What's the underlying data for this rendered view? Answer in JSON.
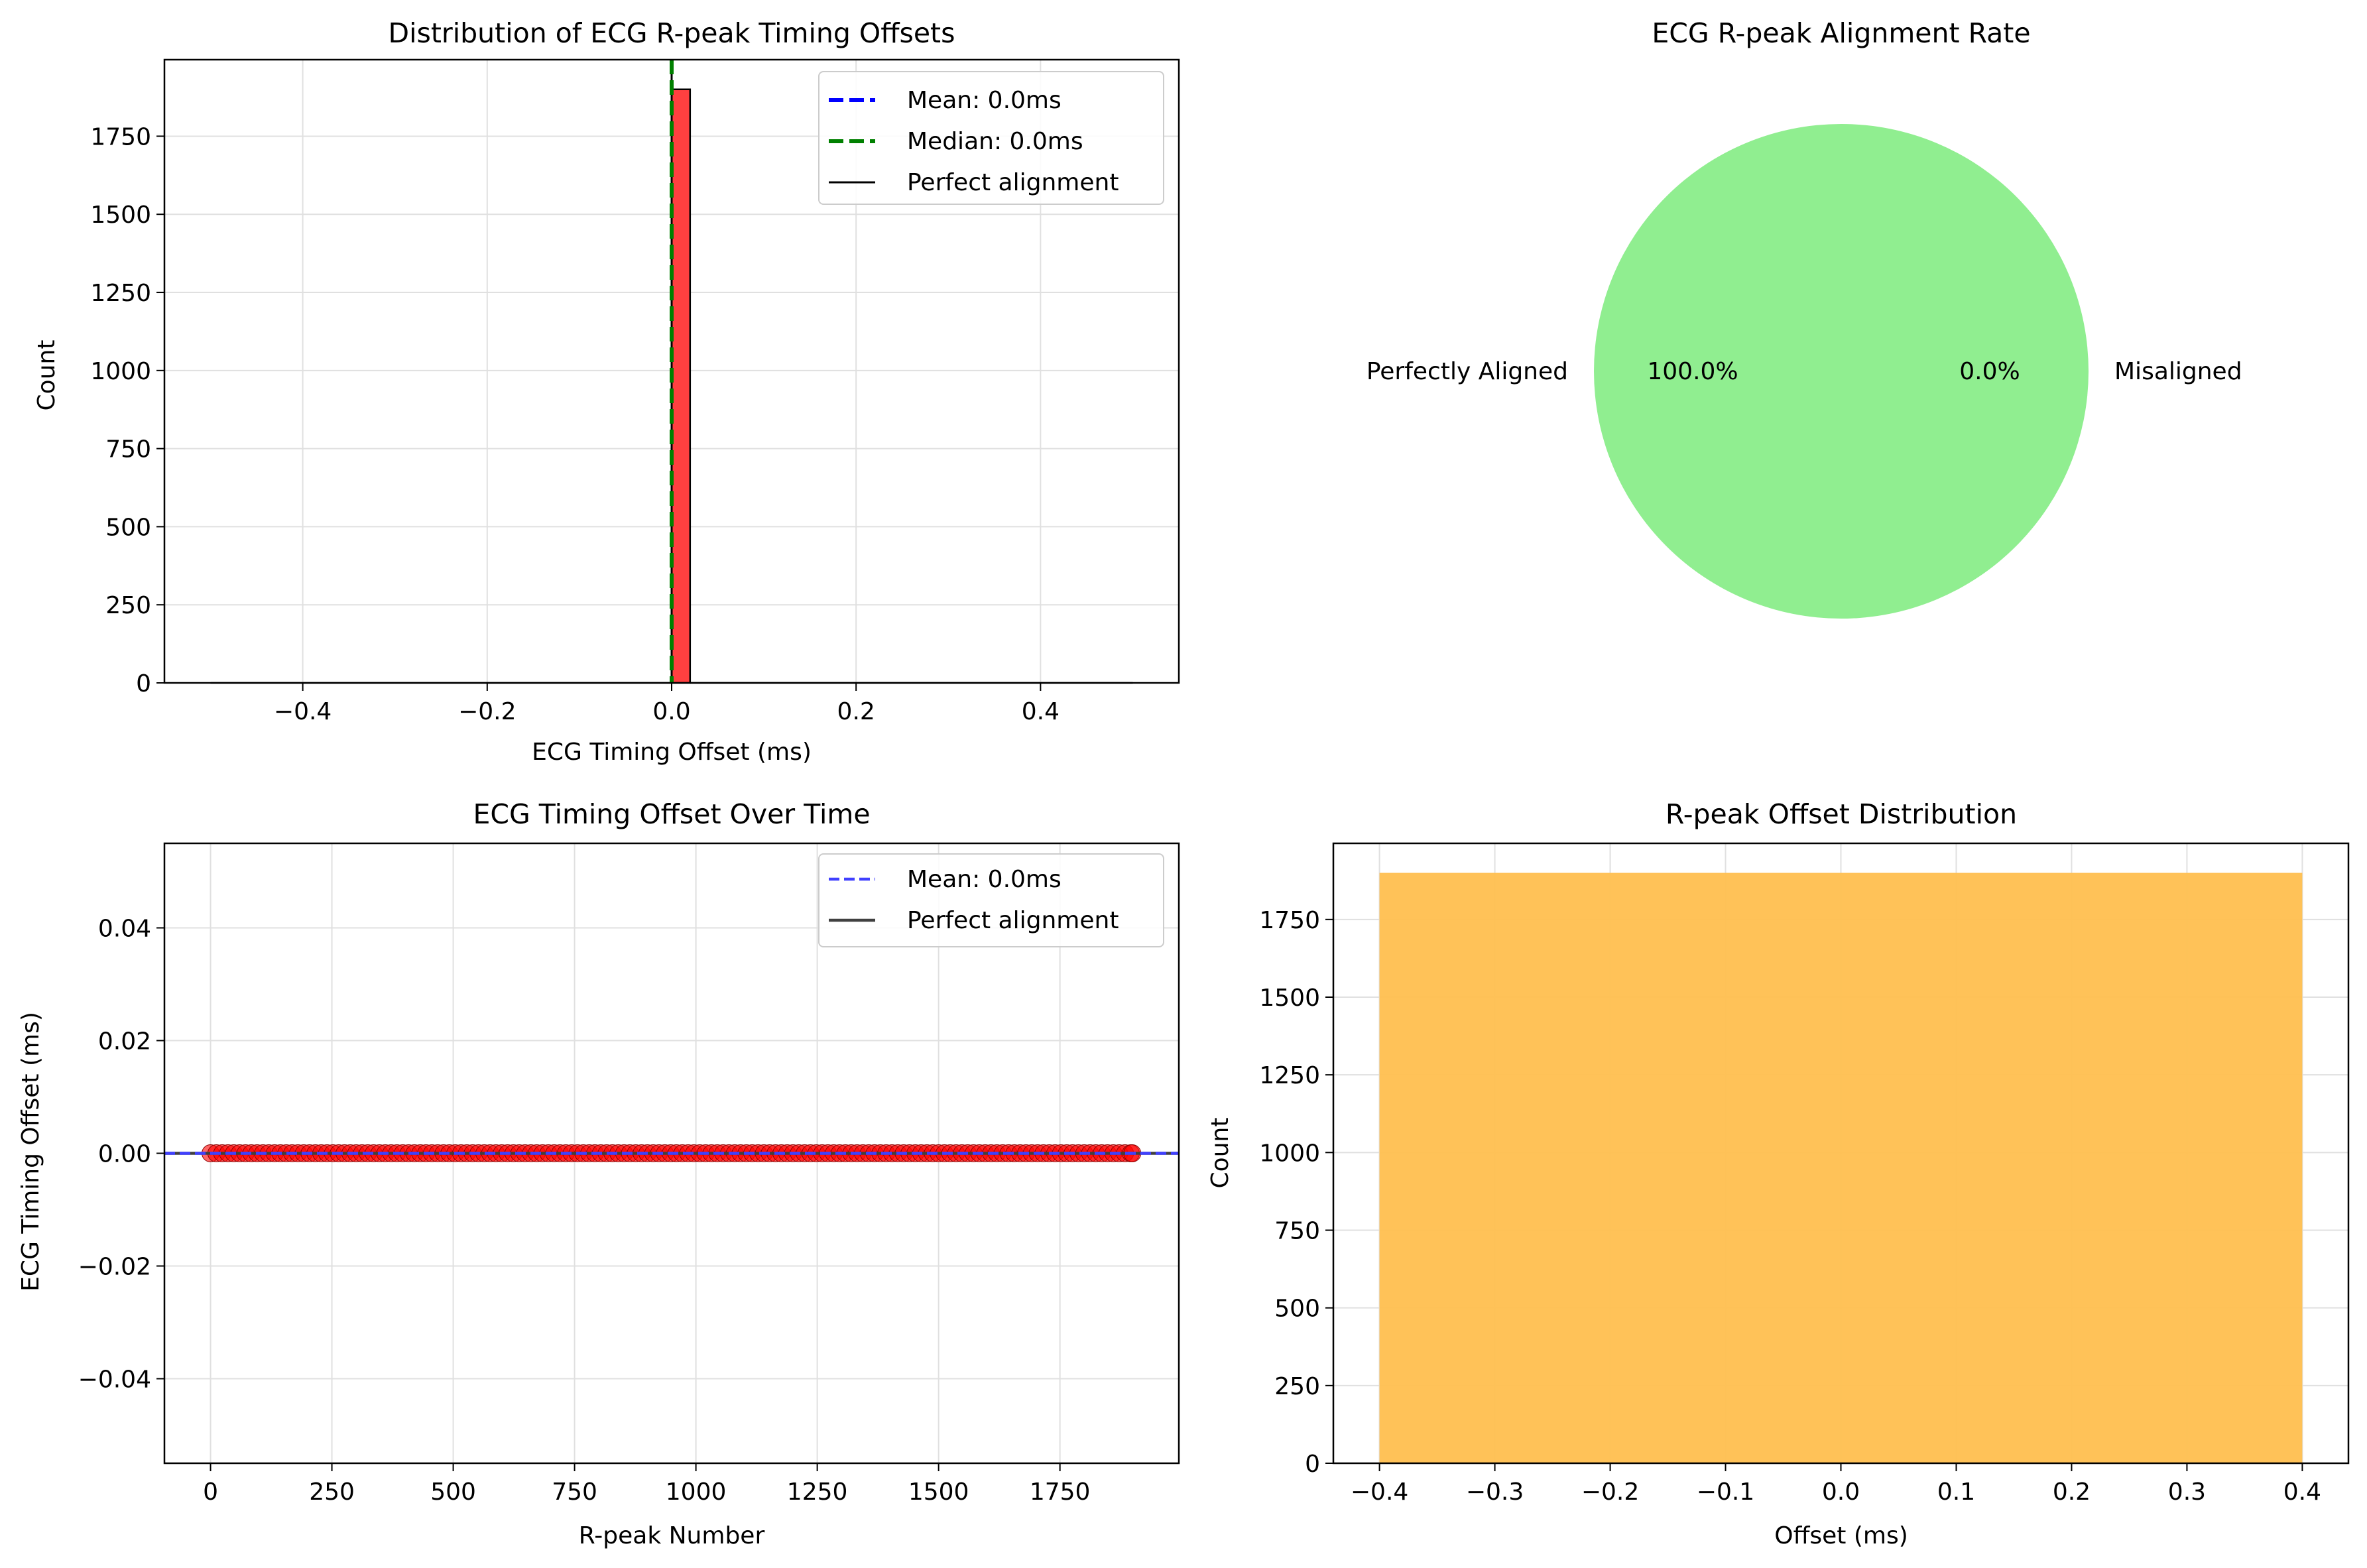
{
  "colors": {
    "hist_red": "#ff4040",
    "mean_blue": "#0000ff",
    "median_green": "#008000",
    "pie_green": "#90ee90",
    "scatter_red": "#ff0000",
    "line_blue": "#4040ff",
    "orange": "#ffbf4f",
    "grid": "#e0e0e0"
  },
  "chart_data": [
    {
      "id": "hist",
      "type": "bar",
      "title": "Distribution of ECG R-peak Timing Offsets",
      "xlabel": "ECG Timing Offset (ms)",
      "ylabel": "Count",
      "xlim": [
        -0.55,
        0.55
      ],
      "ylim": [
        0,
        1995
      ],
      "xticks": [
        -0.4,
        -0.2,
        0.0,
        0.2,
        0.4
      ],
      "xtick_labels": [
        "−0.4",
        "−0.2",
        "0.0",
        "0.2",
        "0.4"
      ],
      "yticks": [
        0,
        250,
        500,
        750,
        1000,
        1250,
        1500,
        1750
      ],
      "ytick_labels": [
        "0",
        "250",
        "500",
        "750",
        "1000",
        "1250",
        "1500",
        "1750"
      ],
      "bins": {
        "start": -0.5,
        "width": 0.02,
        "count": 50
      },
      "bars": [
        {
          "x0": 0.0,
          "x1": 0.02,
          "count": 1900
        }
      ],
      "grid": true,
      "legend_position": "upper right",
      "legend": [
        "Mean: 0.0ms",
        "Median: 0.0ms",
        "Perfect alignment"
      ],
      "mean": 0.0,
      "median": 0.0,
      "perfect": 0.0
    },
    {
      "id": "pie",
      "type": "pie",
      "title": "ECG R-peak Alignment Rate",
      "labels": [
        "Perfectly Aligned",
        "Misaligned"
      ],
      "values": [
        100.0,
        0.0
      ],
      "pct_labels": [
        "100.0%",
        "0.0%"
      ]
    },
    {
      "id": "scatter",
      "type": "scatter",
      "title": "ECG Timing Offset Over Time",
      "xlabel": "R-peak Number",
      "ylabel": "ECG Timing Offset (ms)",
      "xlim": [
        -95,
        1995
      ],
      "ylim": [
        -0.055,
        0.055
      ],
      "xticks": [
        0,
        250,
        500,
        750,
        1000,
        1250,
        1500,
        1750
      ],
      "xtick_labels": [
        "0",
        "250",
        "500",
        "750",
        "1000",
        "1250",
        "1500",
        "1750"
      ],
      "yticks": [
        -0.04,
        -0.02,
        0.0,
        0.02,
        0.04
      ],
      "ytick_labels": [
        "−0.04",
        "−0.02",
        "0.00",
        "0.02",
        "0.04"
      ],
      "points": {
        "x_start": 0,
        "x_end": 1899,
        "y": 0.0
      },
      "grid": true,
      "legend_position": "upper right",
      "legend": [
        "Mean: 0.0ms",
        "Perfect alignment"
      ],
      "mean": 0.0
    },
    {
      "id": "bar",
      "type": "bar",
      "title": "R-peak Offset Distribution",
      "xlabel": "Offset (ms)",
      "ylabel": "Count",
      "xlim": [
        -0.44,
        0.44
      ],
      "ylim": [
        0,
        1995
      ],
      "xticks": [
        -0.4,
        -0.3,
        -0.2,
        -0.1,
        0.0,
        0.1,
        0.2,
        0.3,
        0.4
      ],
      "xtick_labels": [
        "−0.4",
        "−0.3",
        "−0.2",
        "−0.1",
        "0.0",
        "0.1",
        "0.2",
        "0.3",
        "0.4"
      ],
      "yticks": [
        0,
        250,
        500,
        750,
        1000,
        1250,
        1500,
        1750
      ],
      "ytick_labels": [
        "0",
        "250",
        "500",
        "750",
        "1000",
        "1250",
        "1500",
        "1750"
      ],
      "bars": [
        {
          "x0": -0.4,
          "x1": 0.4,
          "count": 1900
        }
      ],
      "grid": true
    }
  ]
}
